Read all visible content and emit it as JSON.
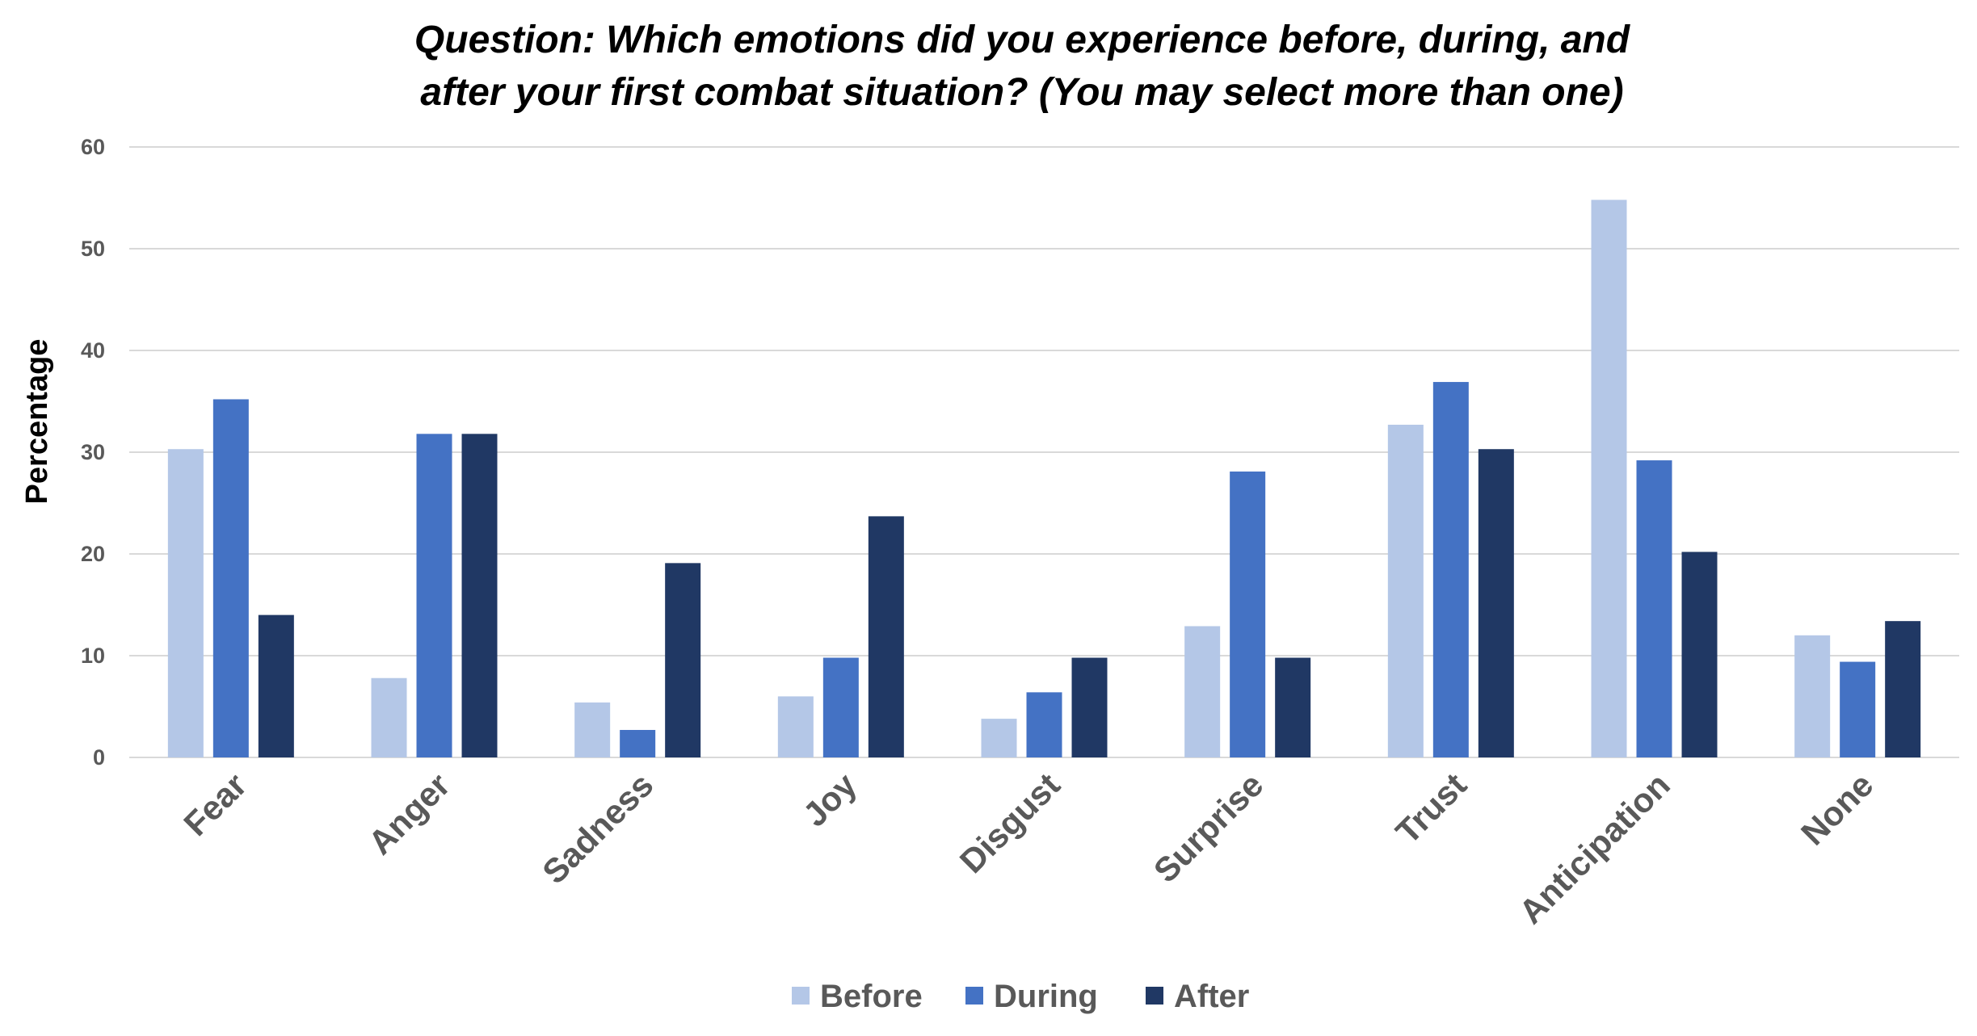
{
  "chart_data": {
    "type": "bar",
    "title_lines": [
      "Question: Which emotions did you experience before, during, and",
      "after your first combat situation? (You may select more than one)"
    ],
    "xlabel": "",
    "ylabel": "Percentage",
    "ylim": [
      0,
      60
    ],
    "yticks": [
      0,
      10,
      20,
      30,
      40,
      50,
      60
    ],
    "grid": true,
    "legend_position": "bottom",
    "categories": [
      "Fear",
      "Anger",
      "Sadness",
      "Joy",
      "Disgust",
      "Surprise",
      "Trust",
      "Anticipation",
      "None"
    ],
    "series": [
      {
        "name": "Before",
        "color": "#b4c7e7",
        "values": [
          30.3,
          7.8,
          5.4,
          6.0,
          3.8,
          12.9,
          32.7,
          54.8,
          12.0
        ]
      },
      {
        "name": "During",
        "color": "#4472c4",
        "values": [
          35.2,
          31.8,
          2.7,
          9.8,
          6.4,
          28.1,
          36.9,
          29.2,
          9.4
        ]
      },
      {
        "name": "After",
        "color": "#203864",
        "values": [
          14.0,
          31.8,
          19.1,
          23.7,
          9.8,
          9.8,
          30.3,
          20.2,
          13.4
        ]
      }
    ]
  }
}
